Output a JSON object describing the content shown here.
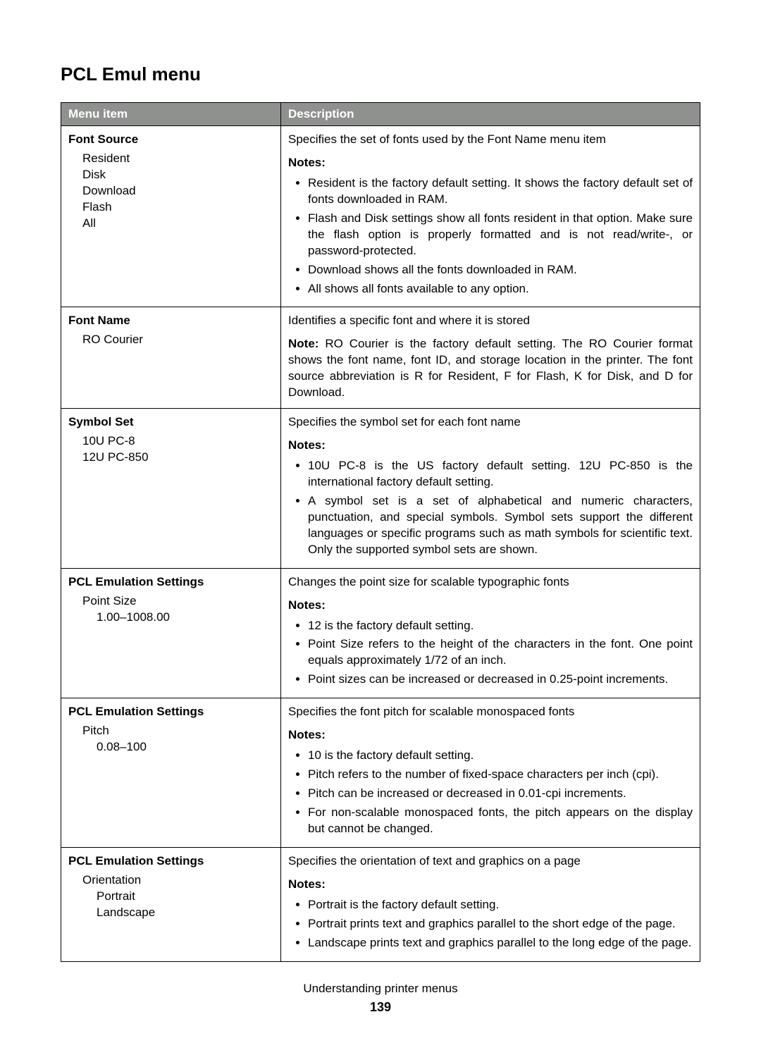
{
  "title": "PCL Emul menu",
  "header": {
    "col1": "Menu item",
    "col2": "Description"
  },
  "rows": [
    {
      "item_title": "Font Source",
      "sub1": [
        "Resident",
        "Disk",
        "Download",
        "Flash",
        "All"
      ],
      "sub2": [],
      "lead": "Specifies the set of fonts used by the Font Name menu item",
      "notes_head": "Notes:",
      "notes": [
        "Resident is the factory default setting. It shows the factory default set of fonts downloaded in RAM.",
        "Flash and Disk settings show all fonts resident in that option. Make sure the flash option is properly formatted and is not read/write-, or password-protected.",
        "Download shows all the fonts downloaded in RAM.",
        "All shows all fonts available to any option."
      ]
    },
    {
      "item_title": "Font Name",
      "sub1": [
        "RO Courier"
      ],
      "sub2": [],
      "lead": "Identifies a specific font and where it is stored",
      "inline_note_label": "Note: ",
      "inline_note_text": "RO Courier is the factory default setting. The RO Courier format shows the font name, font ID, and storage location in the printer. The font source abbreviation is R for Resident, F for Flash, K for Disk, and D for Download."
    },
    {
      "item_title": "Symbol Set",
      "sub1": [
        "10U PC-8",
        "12U PC-850"
      ],
      "sub2": [],
      "lead": "Specifies the symbol set for each font name",
      "notes_head": "Notes:",
      "notes": [
        "10U PC-8 is the US factory default setting. 12U PC-850 is the international factory default setting.",
        "A symbol set is a set of alphabetical and numeric characters, punctuation, and special symbols. Symbol sets support the different languages or specific programs such as math symbols for scientific text. Only the supported symbol sets are shown."
      ]
    },
    {
      "item_title": "PCL Emulation Settings",
      "sub1": [
        "Point Size"
      ],
      "sub2": [
        "1.00–1008.00"
      ],
      "lead": "Changes the point size for scalable typographic fonts",
      "notes_head": "Notes:",
      "notes": [
        "12 is the factory default setting.",
        "Point Size refers to the height of the characters in the font. One point equals approximately 1/72 of an inch.",
        "Point sizes can be increased or decreased in 0.25-point increments."
      ]
    },
    {
      "item_title": "PCL Emulation Settings",
      "sub1": [
        "Pitch"
      ],
      "sub2": [
        "0.08–100"
      ],
      "lead": "Specifies the font pitch for scalable monospaced fonts",
      "notes_head": "Notes:",
      "notes": [
        "10 is the factory default setting.",
        "Pitch refers to the number of fixed-space characters per inch (cpi).",
        "Pitch can be increased or decreased in 0.01-cpi increments.",
        "For non-scalable monospaced fonts, the pitch appears on the display but cannot be changed."
      ]
    },
    {
      "item_title": "PCL Emulation Settings",
      "sub1": [
        "Orientation"
      ],
      "sub2": [
        "Portrait",
        "Landscape"
      ],
      "lead": "Specifies the orientation of text and graphics on a page",
      "notes_head": "Notes:",
      "notes": [
        "Portrait is the factory default setting.",
        "Portrait prints text and graphics parallel to the short edge of the page.",
        "Landscape prints text and graphics parallel to the long edge of the page."
      ]
    }
  ],
  "footer": "Understanding printer menus",
  "page_number": "139"
}
